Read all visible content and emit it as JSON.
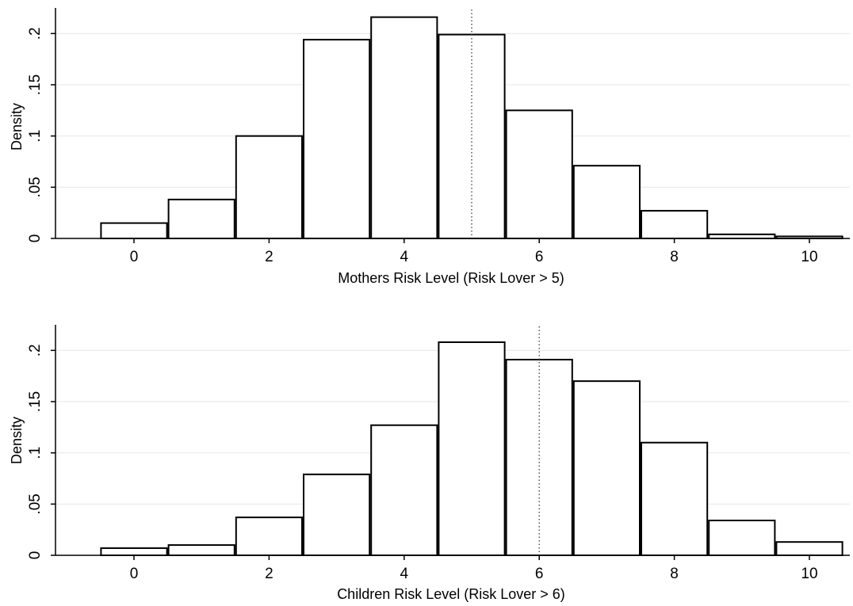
{
  "chart_data": [
    {
      "type": "bar",
      "xlabel": "Mothers Risk Level (Risk Lover > 5)",
      "ylabel": "Density",
      "categories": [
        0,
        1,
        2,
        3,
        4,
        5,
        6,
        7,
        8,
        9,
        10
      ],
      "values": [
        0.015,
        0.038,
        0.1,
        0.194,
        0.216,
        0.199,
        0.125,
        0.071,
        0.027,
        0.004,
        0.002
      ],
      "xlim": [
        -0.5,
        10.5
      ],
      "ylim": [
        0,
        0.225
      ],
      "xticks": [
        0,
        2,
        4,
        6,
        8,
        10
      ],
      "xtick_labels": [
        "0",
        "2",
        "4",
        "6",
        "8",
        "10"
      ],
      "yticks": [
        0,
        0.05,
        0.1,
        0.15,
        0.2
      ],
      "ytick_labels": [
        "0",
        ".05",
        ".1",
        ".15",
        ".2"
      ],
      "reference_line_x": 5,
      "grid": true
    },
    {
      "type": "bar",
      "xlabel": "Children Risk Level (Risk Lover > 6)",
      "ylabel": "Density",
      "categories": [
        0,
        1,
        2,
        3,
        4,
        5,
        6,
        7,
        8,
        9,
        10
      ],
      "values": [
        0.007,
        0.01,
        0.037,
        0.079,
        0.127,
        0.208,
        0.191,
        0.17,
        0.11,
        0.034,
        0.013
      ],
      "xlim": [
        -0.5,
        10.5
      ],
      "ylim": [
        0,
        0.225
      ],
      "xticks": [
        0,
        2,
        4,
        6,
        8,
        10
      ],
      "xtick_labels": [
        "0",
        "2",
        "4",
        "6",
        "8",
        "10"
      ],
      "yticks": [
        0,
        0.05,
        0.1,
        0.15,
        0.2
      ],
      "ytick_labels": [
        "0",
        ".05",
        ".1",
        ".15",
        ".2"
      ],
      "reference_line_x": 6,
      "grid": true
    }
  ],
  "colors": {
    "bar_fill": "#ffffff",
    "bar_stroke": "#000000",
    "grid": "#e6eaee",
    "axis": "#000000",
    "reference_line": "#555555"
  }
}
